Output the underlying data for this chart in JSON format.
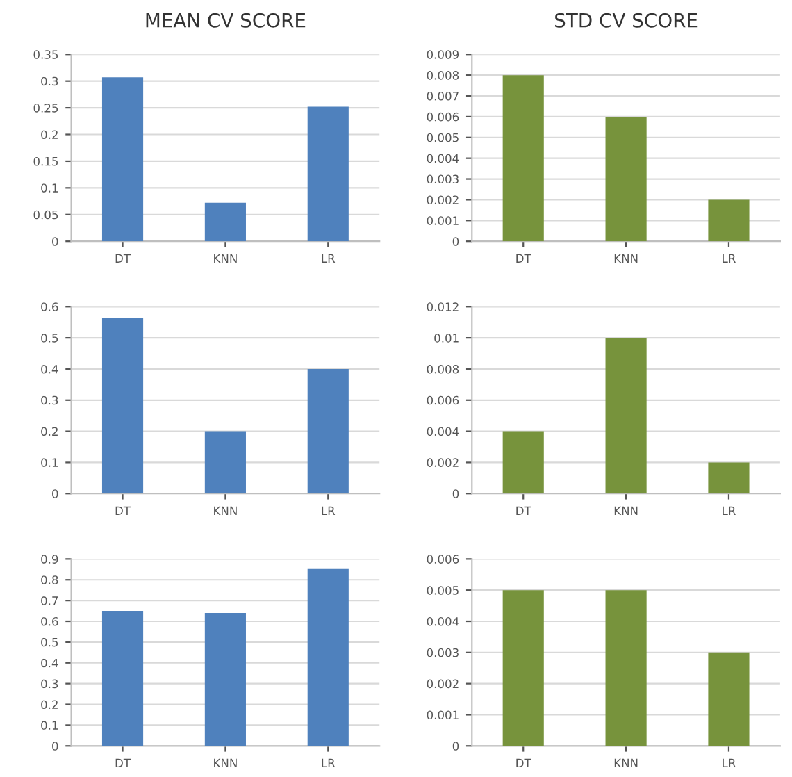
{
  "chart_data": [
    {
      "type": "bar",
      "title": "MEAN CV SCORE",
      "categories": [
        "DT",
        "KNN",
        "LR"
      ],
      "values": [
        0.307,
        0.072,
        0.252
      ],
      "color": "#4f81bd",
      "ylim": [
        0,
        0.35
      ],
      "yticks": [
        0,
        0.05,
        0.1,
        0.15,
        0.2,
        0.25,
        0.3,
        0.35
      ],
      "grid": "y"
    },
    {
      "type": "bar",
      "title": "STD CV SCORE",
      "categories": [
        "DT",
        "KNN",
        "LR"
      ],
      "values": [
        0.008,
        0.006,
        0.002
      ],
      "color": "#77933c",
      "ylim": [
        0,
        0.009
      ],
      "yticks": [
        0,
        0.001,
        0.002,
        0.003,
        0.004,
        0.005,
        0.006,
        0.007,
        0.008,
        0.009
      ],
      "grid": "y"
    },
    {
      "type": "bar",
      "categories": [
        "DT",
        "KNN",
        "LR"
      ],
      "values": [
        0.565,
        0.2,
        0.4
      ],
      "color": "#4f81bd",
      "ylim": [
        0,
        0.6
      ],
      "yticks": [
        0,
        0.1,
        0.2,
        0.3,
        0.4,
        0.5,
        0.6
      ],
      "grid": "y"
    },
    {
      "type": "bar",
      "categories": [
        "DT",
        "KNN",
        "LR"
      ],
      "values": [
        0.004,
        0.01,
        0.002
      ],
      "color": "#77933c",
      "ylim": [
        0,
        0.012
      ],
      "yticks": [
        0,
        0.002,
        0.004,
        0.006,
        0.008,
        0.01,
        0.012
      ],
      "grid": "y"
    },
    {
      "type": "bar",
      "categories": [
        "DT",
        "KNN",
        "LR"
      ],
      "values": [
        0.65,
        0.64,
        0.855
      ],
      "color": "#4f81bd",
      "ylim": [
        0,
        0.9
      ],
      "yticks": [
        0,
        0.1,
        0.2,
        0.3,
        0.4,
        0.5,
        0.6,
        0.7,
        0.8,
        0.9
      ],
      "grid": "y"
    },
    {
      "type": "bar",
      "categories": [
        "DT",
        "KNN",
        "LR"
      ],
      "values": [
        0.005,
        0.005,
        0.003
      ],
      "color": "#77933c",
      "ylim": [
        0,
        0.006
      ],
      "yticks": [
        0,
        0.001,
        0.002,
        0.003,
        0.004,
        0.005,
        0.006
      ],
      "grid": "y"
    }
  ]
}
